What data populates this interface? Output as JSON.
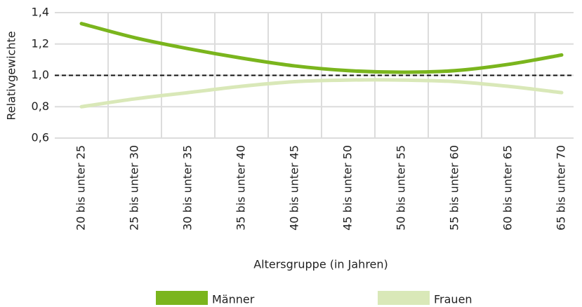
{
  "chart_data": {
    "type": "line",
    "xlabel": "Altersgruppe (in Jahren)",
    "ylabel": "Relativgewichte",
    "categories": [
      "20 bis unter 25",
      "25 bis unter 30",
      "30 bis unter 35",
      "35 bis unter 40",
      "40 bis unter 45",
      "45 bis unter 50",
      "50 bis unter 55",
      "55 bis unter 60",
      "60 bis unter 65",
      "65 bis unter 70"
    ],
    "series": [
      {
        "name": "Männer",
        "color": "#7ab51d",
        "values": [
          1.33,
          1.24,
          1.17,
          1.11,
          1.06,
          1.03,
          1.02,
          1.03,
          1.07,
          1.13
        ]
      },
      {
        "name": "Frauen",
        "color": "#d9e8b8",
        "values": [
          0.8,
          0.85,
          0.89,
          0.93,
          0.96,
          0.97,
          0.97,
          0.96,
          0.93,
          0.89
        ]
      }
    ],
    "ylim": [
      0.6,
      1.4
    ],
    "yticks": [
      {
        "value": 0.6,
        "label": "0,6"
      },
      {
        "value": 0.8,
        "label": "0,8"
      },
      {
        "value": 1.0,
        "label": "1,0"
      },
      {
        "value": 1.2,
        "label": "1,2"
      },
      {
        "value": 1.4,
        "label": "1,4"
      }
    ],
    "reference_line": 1.0,
    "grid": true,
    "legend": "bottom"
  }
}
